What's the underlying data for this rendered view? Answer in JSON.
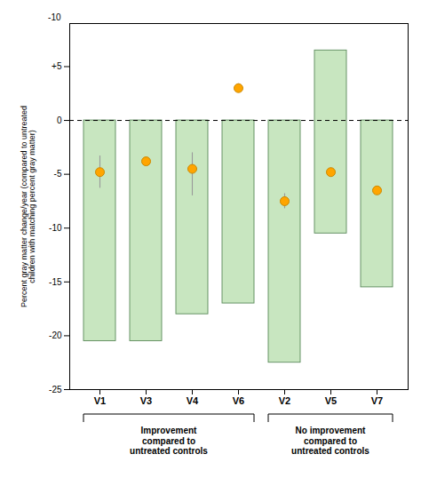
{
  "chart_data": {
    "type": "bar",
    "categories": [
      "V1",
      "V3",
      "V4",
      "V6",
      "V2",
      "V5",
      "V7"
    ],
    "series": [
      {
        "type": "bar",
        "color": "#c8e6c0",
        "bottoms": [
          0,
          0,
          0,
          0,
          0,
          -10.5,
          0
        ],
        "values": [
          -20.5,
          -20.5,
          -18.0,
          -17.0,
          -22.5,
          6.5,
          -15.5
        ]
      },
      {
        "type": "scatter",
        "color": "#FFA500",
        "marker": "circle",
        "values": [
          -4.8,
          -3.8,
          -4.5,
          3.0,
          -7.5,
          -4.8,
          -6.5
        ],
        "errors_pos": [
          1.5,
          0.4,
          1.5,
          0.4,
          0.7,
          0.4,
          0.3
        ],
        "errors_neg": [
          1.5,
          0.4,
          2.5,
          0.4,
          0.7,
          0.4,
          0.3
        ]
      }
    ],
    "reference_lines": [
      {
        "y": 0,
        "line_style": "dashed"
      }
    ],
    "ylim": [
      -25,
      9
    ],
    "yticks": [
      -25,
      -20,
      -15,
      -10,
      -5,
      0,
      {
        "value": 5,
        "label": "+5"
      }
    ],
    "ylabel": "Percent gray matter change/year (compared to untreated\nchildren with matching percent gray matter)",
    "annotations": [
      "-10"
    ],
    "groups": [
      {
        "label": "Improvement\ncompared to\nuntreated controls",
        "categories": [
          "V1",
          "V3",
          "V4",
          "V6"
        ]
      },
      {
        "label": "No improvement\ncompared to\nuntreated controls",
        "categories": [
          "V2",
          "V5",
          "V7"
        ]
      }
    ]
  }
}
